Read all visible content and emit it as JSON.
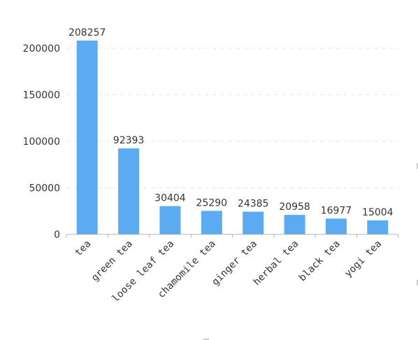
{
  "colors": {
    "bar": "#5aabf2",
    "axis": "#b3b3b3",
    "grid": "#e6e6e6",
    "text": "#333333"
  },
  "chart_data": {
    "type": "bar",
    "title": "",
    "xlabel": "",
    "ylabel": "",
    "categories": [
      "tea",
      "green tea",
      "loose leaf tea",
      "chamomile tea",
      "ginger tea",
      "herbal tea",
      "black tea",
      "yogi tea"
    ],
    "values": [
      208257,
      92393,
      30404,
      25290,
      24385,
      20958,
      16977,
      15004
    ],
    "data_labels": [
      "208257",
      "92393",
      "30404",
      "25290",
      "24385",
      "20958",
      "16977",
      "15004"
    ],
    "ylim": [
      0,
      200000
    ],
    "yticks": [
      0,
      50000,
      100000,
      150000,
      200000
    ],
    "ytick_labels": [
      "0",
      "50000",
      "100000",
      "150000",
      "200000"
    ],
    "grid": true,
    "legend": "none"
  }
}
